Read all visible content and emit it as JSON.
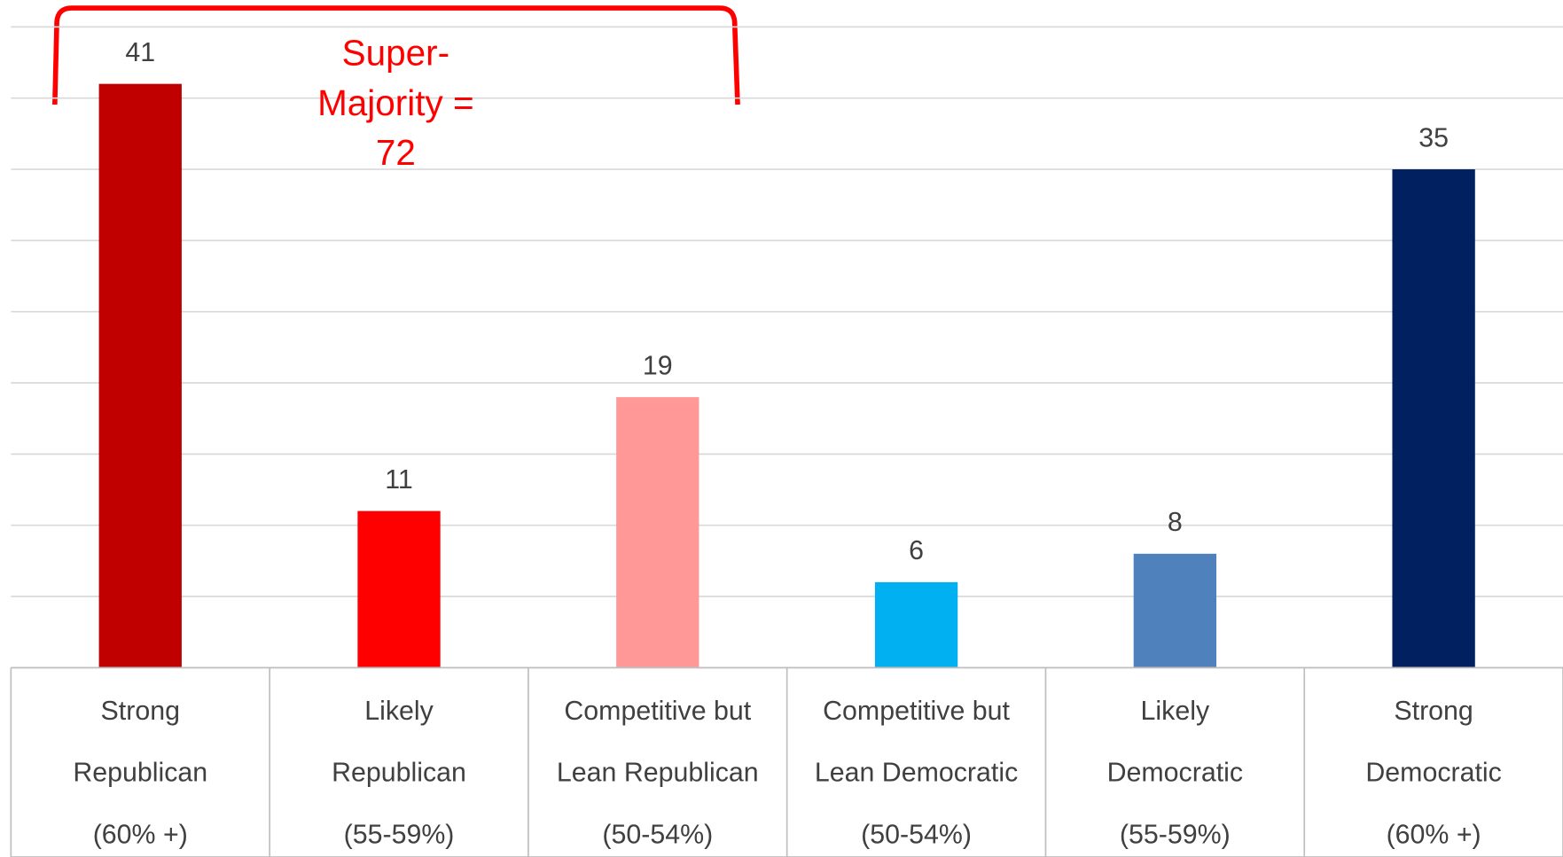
{
  "chart_data": {
    "type": "bar",
    "categories": [
      [
        "Strong",
        "Republican",
        "(60% +)"
      ],
      [
        "Likely",
        "Republican",
        "(55-59%)"
      ],
      [
        "Competitive but",
        "Lean Republican",
        "(50-54%)"
      ],
      [
        "Competitive but",
        "Lean Democratic",
        "(50-54%)"
      ],
      [
        "Likely",
        "Democratic",
        "(55-59%)"
      ],
      [
        "Strong",
        "Democratic",
        "(60% +)"
      ]
    ],
    "values": [
      41,
      11,
      19,
      6,
      8,
      35
    ],
    "colors": [
      "#c00000",
      "#ff0000",
      "#ff9896",
      "#00b0f0",
      "#4f81bd",
      "#002060"
    ],
    "ylim": [
      0,
      45
    ],
    "yticks": [
      0,
      5,
      10,
      15,
      20,
      25,
      30,
      35,
      40,
      45
    ],
    "grid": true,
    "annotation": {
      "lines": [
        "Super-",
        "Majority =",
        "72"
      ],
      "color": "#ff0000"
    }
  }
}
